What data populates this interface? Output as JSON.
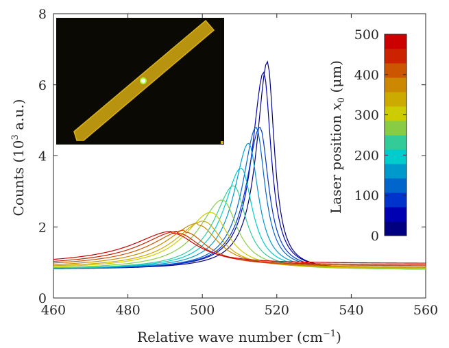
{
  "chart_data": {
    "type": "line",
    "xlabel": "Relative wave number (cm",
    "xlabel_sup": "−1",
    "xlabel_end": ")",
    "ylabel_pre": "Counts (10",
    "ylabel_sup": "3",
    "ylabel_end": " a.u.)",
    "xlim": [
      460,
      560
    ],
    "ylim": [
      0,
      8
    ],
    "xticks": [
      "460",
      "480",
      "500",
      "520",
      "540",
      "560"
    ],
    "yticks": [
      "0",
      "2",
      "4",
      "6",
      "8"
    ],
    "colorbar": {
      "label_pre": "Laser position ",
      "label_var": "x",
      "label_sub": "0",
      "label_unit": " (μm)",
      "ticks": [
        "0",
        "100",
        "200",
        "300",
        "400",
        "500"
      ],
      "range": [
        0,
        500
      ],
      "colors": [
        "#000080",
        "#0000b3",
        "#0033cc",
        "#0066cc",
        "#0099cc",
        "#00cccc",
        "#33cc99",
        "#88cc44",
        "#cccc00",
        "#ccaa00",
        "#cc8800",
        "#cc5500",
        "#cc2200",
        "#cc0000"
      ]
    },
    "series": [
      {
        "laser_position_um": 0,
        "color": "#000080",
        "peak_x": 517.5,
        "peak_y": 6.65,
        "baseline": 0.8,
        "width": 2.2
      },
      {
        "laser_position_um": 35,
        "color": "#0000b3",
        "peak_x": 516.5,
        "peak_y": 6.35,
        "baseline": 0.8,
        "width": 2.4
      },
      {
        "laser_position_um": 70,
        "color": "#0033cc",
        "peak_x": 515.5,
        "peak_y": 4.8,
        "baseline": 0.8,
        "width": 2.8
      },
      {
        "laser_position_um": 105,
        "color": "#0066cc",
        "peak_x": 514.5,
        "peak_y": 4.8,
        "baseline": 0.8,
        "width": 2.8
      },
      {
        "laser_position_um": 140,
        "color": "#0099cc",
        "peak_x": 512.5,
        "peak_y": 4.35,
        "baseline": 0.8,
        "width": 3.1
      },
      {
        "laser_position_um": 175,
        "color": "#00cccc",
        "peak_x": 510.5,
        "peak_y": 3.65,
        "baseline": 0.8,
        "width": 3.6
      },
      {
        "laser_position_um": 210,
        "color": "#33cc99",
        "peak_x": 508.5,
        "peak_y": 3.15,
        "baseline": 0.8,
        "width": 4.0
      },
      {
        "laser_position_um": 245,
        "color": "#88cc44",
        "peak_x": 505.5,
        "peak_y": 2.75,
        "baseline": 0.8,
        "width": 4.8
      },
      {
        "laser_position_um": 280,
        "color": "#cccc00",
        "peak_x": 502.5,
        "peak_y": 2.4,
        "baseline": 0.82,
        "width": 5.5
      },
      {
        "laser_position_um": 315,
        "color": "#ccaa00",
        "peak_x": 500.5,
        "peak_y": 2.15,
        "baseline": 0.84,
        "width": 6.0
      },
      {
        "laser_position_um": 350,
        "color": "#cc8800",
        "peak_x": 499.0,
        "peak_y": 2.05,
        "baseline": 0.86,
        "width": 6.5
      },
      {
        "laser_position_um": 385,
        "color": "#cc5500",
        "peak_x": 495.5,
        "peak_y": 1.85,
        "baseline": 0.9,
        "width": 7.0
      },
      {
        "laser_position_um": 420,
        "color": "#cc2200",
        "peak_x": 493.5,
        "peak_y": 1.82,
        "baseline": 0.93,
        "width": 7.5
      },
      {
        "laser_position_um": 455,
        "color": "#cc0000",
        "peak_x": 492.0,
        "peak_y": 1.82,
        "baseline": 0.97,
        "width": 8.0
      }
    ]
  },
  "inset": {
    "description_icon": "microscope-image-nanowire"
  }
}
